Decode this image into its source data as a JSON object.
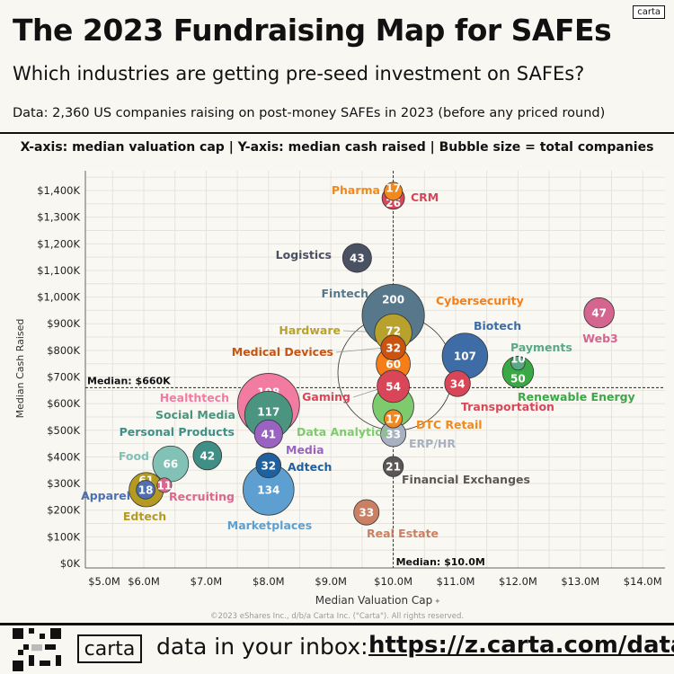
{
  "header": {
    "title": "The 2023 Fundraising Map for SAFEs",
    "subtitle": "Which industries are getting pre-seed investment on SAFEs?",
    "data_note": "Data: 2,360 US companies raising on post-money SAFEs in 2023 (before any priced round)",
    "brand_tag": "carta",
    "axis_description": "X-axis: median valuation cap | Y-axis: median cash raised | Bubble size = total companies"
  },
  "chart_data": {
    "type": "scatter",
    "xlabel": "Median Valuation Cap",
    "ylabel": "Median Cash Raised",
    "x_unit": "$M",
    "y_unit": "$K",
    "xlim": [
      5.0,
      14.3
    ],
    "ylim": [
      0,
      1480
    ],
    "x_ticks": [
      {
        "value": 5.0,
        "label": "$5.0M"
      },
      {
        "value": 6.0,
        "label": "$6.0M"
      },
      {
        "value": 7.0,
        "label": "$7.0M"
      },
      {
        "value": 8.0,
        "label": "$8.0M"
      },
      {
        "value": 9.0,
        "label": "$9.0M"
      },
      {
        "value": 10.0,
        "label": "$10.0M"
      },
      {
        "value": 11.0,
        "label": "$11.0M"
      },
      {
        "value": 12.0,
        "label": "$12.0M"
      },
      {
        "value": 13.0,
        "label": "$13.0M"
      },
      {
        "value": 14.0,
        "label": "$14.0M"
      }
    ],
    "y_ticks": [
      {
        "value": 0,
        "label": "$0K"
      },
      {
        "value": 100,
        "label": "$100K"
      },
      {
        "value": 200,
        "label": "$200K"
      },
      {
        "value": 300,
        "label": "$300K"
      },
      {
        "value": 400,
        "label": "$400K"
      },
      {
        "value": 500,
        "label": "$500K"
      },
      {
        "value": 600,
        "label": "$600K"
      },
      {
        "value": 700,
        "label": "$700K"
      },
      {
        "value": 800,
        "label": "$800K"
      },
      {
        "value": 900,
        "label": "$900K"
      },
      {
        "value": 1000,
        "label": "$1,000K"
      },
      {
        "value": 1100,
        "label": "$1,100K"
      },
      {
        "value": 1200,
        "label": "$1,200K"
      },
      {
        "value": 1300,
        "label": "$1,300K"
      },
      {
        "value": 1400,
        "label": "$1,400K"
      }
    ],
    "grid": true,
    "median_x": {
      "value": 10.0,
      "label": "Median: $10.0M"
    },
    "median_y": {
      "value": 660,
      "label": "Median: $660K"
    },
    "size_encoding": "total companies",
    "points": [
      {
        "name": "Fintech",
        "x": 10.0,
        "y": 931,
        "count": 200,
        "color": "#56788a"
      },
      {
        "name": "Healthtech",
        "x": 8.0,
        "y": 597,
        "count": 198,
        "color": "#f27ba2"
      },
      {
        "name": "Marketplaces",
        "x": 8.0,
        "y": 277,
        "count": 134,
        "color": "#5c9fd0"
      },
      {
        "name": "Social Media",
        "x": 8.0,
        "y": 557,
        "count": 117,
        "color": "#4a9480"
      },
      {
        "name": "Biotech",
        "x": 11.15,
        "y": 779,
        "count": 107,
        "color": "#3e6ca6"
      },
      {
        "name": "Data Analytics",
        "x": 10.0,
        "y": 590,
        "count": 87,
        "color": "#7dcb6d"
      },
      {
        "name": "Hardware",
        "x": 10.0,
        "y": 867,
        "count": 72,
        "color": "#b9a12d"
      },
      {
        "name": "Food",
        "x": 6.43,
        "y": 374,
        "count": 66,
        "color": "#82c1b6"
      },
      {
        "name": "Edtech",
        "x": 6.04,
        "y": 277,
        "count": 61,
        "color": "#b59a22"
      },
      {
        "name": "Cybersecurity",
        "x": 10.0,
        "y": 749,
        "count": 60,
        "color": "#f57e17"
      },
      {
        "name": "Gaming",
        "x": 10.0,
        "y": 665,
        "count": 54,
        "color": "#d94657"
      },
      {
        "name": "Renewable Energy",
        "x": 12.0,
        "y": 719,
        "count": 50,
        "color": "#3aa845"
      },
      {
        "name": "Web3",
        "x": 13.3,
        "y": 941,
        "count": 47,
        "color": "#d3658f"
      },
      {
        "name": "Logistics",
        "x": 9.42,
        "y": 1147,
        "count": 43,
        "color": "#4a5163"
      },
      {
        "name": "Personal Products",
        "x": 7.02,
        "y": 405,
        "count": 42,
        "color": "#3f8f86"
      },
      {
        "name": "Media",
        "x": 8.0,
        "y": 486,
        "count": 41,
        "color": "#9a63c1"
      },
      {
        "name": "Transportation",
        "x": 11.03,
        "y": 675,
        "count": 34,
        "color": "#d94657"
      },
      {
        "name": "ERP/HR",
        "x": 10.0,
        "y": 486,
        "count": 33,
        "color": "#a7b1c1"
      },
      {
        "name": "Real Estate",
        "x": 9.57,
        "y": 192,
        "count": 33,
        "color": "#c98063"
      },
      {
        "name": "Medical Devices",
        "x": 10.0,
        "y": 810,
        "count": 32,
        "color": "#c9530f"
      },
      {
        "name": "Adtech",
        "x": 8.0,
        "y": 368,
        "count": 32,
        "color": "#1f609f"
      },
      {
        "name": "CRM",
        "x": 10.0,
        "y": 1372,
        "count": 26,
        "color": "#d94657"
      },
      {
        "name": "Financial Exchanges",
        "x": 10.0,
        "y": 364,
        "count": 21,
        "color": "#5b5757"
      },
      {
        "name": "Apparel",
        "x": 6.03,
        "y": 277,
        "count": 18,
        "color": "#4e70b0"
      },
      {
        "name": "Pharma",
        "x": 10.0,
        "y": 1397,
        "count": 17,
        "color": "#f08a1f"
      },
      {
        "name": "DTC Retail",
        "x": 10.0,
        "y": 543,
        "count": 17,
        "color": "#f08a1f"
      },
      {
        "name": "Recruiting",
        "x": 6.33,
        "y": 294,
        "count": 11,
        "color": "#d9688f"
      },
      {
        "name": "Payments",
        "x": 12.0,
        "y": 752,
        "count": 10,
        "color": "#5aa886"
      }
    ]
  },
  "footer": {
    "copyright": "©2023 eShares Inc., d/b/a Carta Inc. (\"Carta\"). All rights reserved.",
    "logo": "carta",
    "cta": "data in your inbox:",
    "url": "https://z.carta.com/data"
  }
}
